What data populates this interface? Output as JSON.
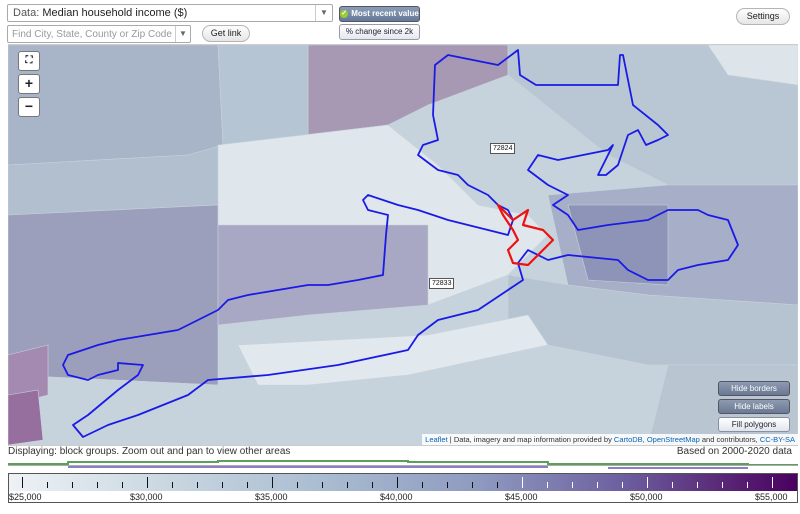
{
  "toolbar": {
    "data_prefix": "Data:",
    "data_selected": "Median household income ($)",
    "search_placeholder": "Find City, State, County or Zip Code",
    "get_link_label": "Get link",
    "most_recent_label": "Most recent value",
    "change_label": "% change since 2k",
    "settings_label": "Settings"
  },
  "map": {
    "zip_labels": [
      "72824",
      "72833"
    ],
    "buttons": {
      "hide_borders": "Hide borders",
      "hide_labels": "Hide labels",
      "fill_polygons": "Fill polygons"
    },
    "attribution": {
      "leaflet": "Leaflet",
      "text1": " | Data, imagery and map information provided by ",
      "carto": "CartoDB",
      "text2": ", ",
      "osm": "OpenStreetMap",
      "text3": " and contributors, ",
      "license": "CC-BY-SA"
    },
    "colors": {
      "primary_border": "#1a1ae6",
      "selected_border": "#ee1111",
      "low": "#e8eef2",
      "high": "#5a2a78"
    }
  },
  "status": {
    "left": "Displaying: block groups. Zoom out and pan to view other areas",
    "right": "Based on 2000-2020 data"
  },
  "legend": {
    "labels": [
      "$25,000",
      "$30,000",
      "$35,000",
      "$40,000",
      "$45,000",
      "$50,000",
      "$55,000"
    ]
  }
}
